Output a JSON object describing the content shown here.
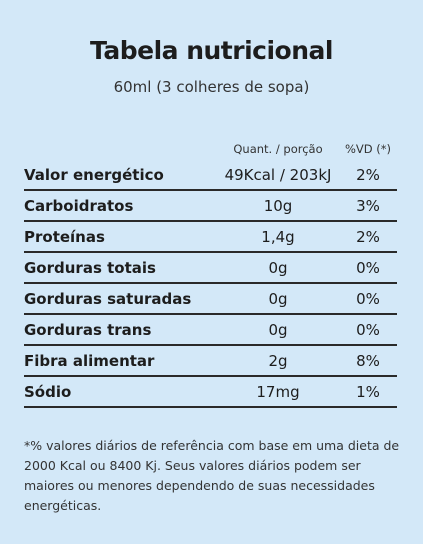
{
  "header": {
    "title": "Tabela nutricional",
    "subtitle": "60ml (3 colheres de sopa)"
  },
  "table": {
    "columns": [
      "Quant. / porção",
      "%VD (*)"
    ],
    "rows": [
      [
        "Valor energético",
        "49Kcal / 203kJ",
        "2%"
      ],
      [
        "Carboidratos",
        "10g",
        "3%"
      ],
      [
        "Proteínas",
        "1,4g",
        "2%"
      ],
      [
        "Gorduras totais",
        "0g",
        "0%"
      ],
      [
        "Gorduras saturadas",
        "0g",
        "0%"
      ],
      [
        "Gorduras trans",
        "0g",
        "0%"
      ],
      [
        "Fibra alimentar",
        "2g",
        "8%"
      ],
      [
        "Sódio",
        "17mg",
        "1%"
      ]
    ]
  },
  "footnote": "*% valores diários de referência com base em uma dieta de 2000 Kcal ou 8400 Kj. Seus valores diários podem ser maiores ou menores dependendo de suas necessidades energéticas."
}
